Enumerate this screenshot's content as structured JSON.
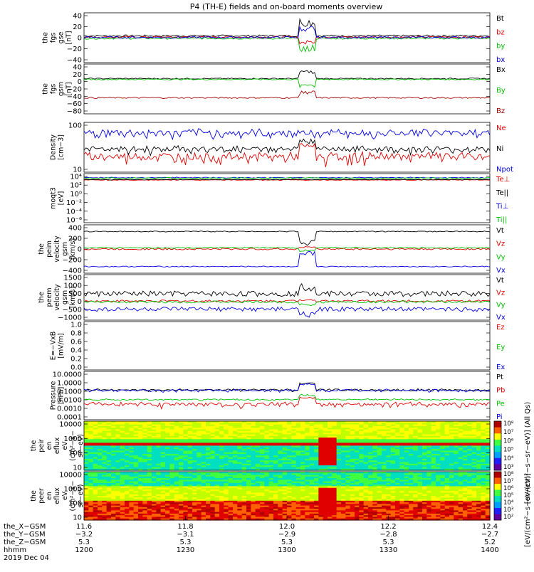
{
  "title": "P4 (TH-E) fields and on-board moments overview",
  "colors": {
    "black": "#000000",
    "red": "#e00000",
    "green": "#00c000",
    "blue": "#0000e0",
    "darkred": "#a00000"
  },
  "chart_data": [
    {
      "type": "line",
      "id": "fgs-gse",
      "ylabel": [
        "the",
        "fgs",
        "gse",
        "[nT]"
      ],
      "ylim": [
        -40,
        40
      ],
      "ytick_labels": [
        "40",
        "20",
        "0",
        "−20",
        "−40"
      ],
      "legend": [
        "Bt",
        "bz",
        "by",
        "bx"
      ],
      "legend_colors": [
        "black",
        "red",
        "green",
        "blue"
      ],
      "series": [
        {
          "name": "Bt",
          "color": "black",
          "base": 3,
          "amp": 1.5,
          "spike": 28
        },
        {
          "name": "bz",
          "color": "red",
          "base": 1,
          "amp": 1.5,
          "spike": -12
        },
        {
          "name": "by",
          "color": "green",
          "base": -1,
          "amp": 1.5,
          "spike": -22
        },
        {
          "name": "bx",
          "color": "blue",
          "base": 0.5,
          "amp": 1.5,
          "spike": 18
        }
      ]
    },
    {
      "type": "line",
      "id": "fgs-gsm",
      "ylabel": [
        "the",
        "fgs",
        "gsm",
        "[nT]"
      ],
      "ylim": [
        -90,
        40
      ],
      "ytick_labels": [
        "40",
        "20",
        "0",
        "−20",
        "−40",
        "−60",
        "−80"
      ],
      "legend": [
        "Bx",
        "By",
        "Bz"
      ],
      "legend_colors": [
        "black",
        "green",
        "darkred"
      ],
      "series": [
        {
          "name": "Bx",
          "color": "black",
          "base": 2,
          "amp": 1.5,
          "spike": 22
        },
        {
          "name": "By",
          "color": "green",
          "base": 0,
          "amp": 1.5,
          "spike": -20
        },
        {
          "name": "Bz",
          "color": "darkred",
          "base": -48,
          "amp": 2,
          "spike": 18
        }
      ]
    },
    {
      "type": "line",
      "id": "density",
      "ylabel": [
        "Density",
        "[cm−3]"
      ],
      "ylog": true,
      "ylim": [
        1,
        300
      ],
      "ytick_labels": [
        "100",
        "10"
      ],
      "legend": [
        "Ne",
        "Ni",
        "Npot"
      ],
      "legend_colors": [
        "red",
        "black",
        "blue"
      ],
      "series": [
        {
          "name": "Ne",
          "color": "red",
          "base": 6,
          "amp": 3,
          "spike": 20
        },
        {
          "name": "Ni",
          "color": "black",
          "base": 14,
          "amp": 5,
          "spike": 30
        },
        {
          "name": "Npot",
          "color": "blue",
          "base": 90,
          "amp": 40,
          "spike": 0
        }
      ]
    },
    {
      "type": "line",
      "id": "temperature",
      "ylabel": [
        "moqt3",
        "[eV]"
      ],
      "ylog": true,
      "ylim": [
        1e-06,
        10000
      ],
      "ytick_labels": [
        "10⁴",
        "10²",
        "10⁰",
        "10⁻²",
        "10⁻⁴",
        "10⁻⁶"
      ],
      "legend": [
        "Te⊥",
        "Te||",
        "Ti⊥",
        "Ti||"
      ],
      "legend_colors": [
        "red",
        "black",
        "blue",
        "green"
      ],
      "series": [
        {
          "name": "Te⊥",
          "color": "red",
          "base": 500,
          "amp": 80,
          "spike": 0
        },
        {
          "name": "Te||",
          "color": "black",
          "base": 600,
          "amp": 80,
          "spike": 0
        },
        {
          "name": "Ti⊥",
          "color": "blue",
          "base": 1500,
          "amp": 300,
          "spike": 0
        },
        {
          "name": "Ti||",
          "color": "green",
          "base": 1200,
          "amp": 300,
          "spike": 0
        }
      ]
    },
    {
      "type": "line",
      "id": "peim-velocity",
      "ylabel": [
        "the",
        "peim",
        "velocity",
        "gsm",
        "[km/s]"
      ],
      "ylim": [
        -400,
        400
      ],
      "ytick_labels": [
        "400",
        "200",
        "0",
        "−200",
        "−400"
      ],
      "legend": [
        "Vt",
        "Vz",
        "Vy",
        "Vx"
      ],
      "legend_colors": [
        "black",
        "red",
        "green",
        "blue"
      ],
      "series": [
        {
          "name": "Vt",
          "color": "black",
          "base": 290,
          "amp": 8,
          "spike": -250
        },
        {
          "name": "Vz",
          "color": "red",
          "base": 0,
          "amp": 15,
          "spike": 40
        },
        {
          "name": "Vy",
          "color": "green",
          "base": 20,
          "amp": 10,
          "spike": -60
        },
        {
          "name": "Vx",
          "color": "blue",
          "base": -290,
          "amp": 8,
          "spike": 250
        }
      ]
    },
    {
      "type": "line",
      "id": "peem-velocity",
      "ylabel": [
        "the",
        "peem",
        "velocity",
        "gsm",
        "[km/s]"
      ],
      "ylim": [
        -1000,
        1500
      ],
      "ytick_labels": [
        "1500",
        "1000",
        "500",
        "0",
        "−500",
        "−1000"
      ],
      "legend": [
        "Vt",
        "Vz",
        "Vy",
        "Vx"
      ],
      "legend_colors": [
        "black",
        "red",
        "green",
        "blue"
      ],
      "series": [
        {
          "name": "Vt",
          "color": "black",
          "base": 450,
          "amp": 150,
          "spike": 500
        },
        {
          "name": "Vz",
          "color": "red",
          "base": 50,
          "amp": 60,
          "spike": 100
        },
        {
          "name": "Vy",
          "color": "green",
          "base": 0,
          "amp": 60,
          "spike": -200
        },
        {
          "name": "Vx",
          "color": "blue",
          "base": -400,
          "amp": 120,
          "spike": -400
        }
      ]
    },
    {
      "type": "line",
      "id": "efield",
      "ylabel": [
        "E=−VxB",
        "[mV/m]"
      ],
      "ylim": [
        0,
        1
      ],
      "ytick_labels": [
        "1.0",
        "0.8",
        "0.6",
        "0.4",
        "0.2",
        "0.0"
      ],
      "legend": [
        "Ez",
        "Ey",
        "Ex"
      ],
      "legend_colors": [
        "red",
        "green",
        "blue"
      ],
      "series": []
    },
    {
      "type": "line",
      "id": "pressure",
      "ylabel": [
        "Pressure",
        "[nPa]"
      ],
      "ylog": true,
      "ylim": [
        0.0001,
        10
      ],
      "ytick_labels": [
        "10.0000",
        "1.0000",
        "0.1000",
        "0.0100",
        "0.0010",
        "0.0001"
      ],
      "legend": [
        "Pt",
        "Pb",
        "Pe",
        "Pi"
      ],
      "legend_colors": [
        "black",
        "red",
        "green",
        "blue"
      ],
      "series": [
        {
          "name": "Pt",
          "color": "black",
          "base": 0.12,
          "amp": 0.03,
          "spike": 0.6
        },
        {
          "name": "Pb",
          "color": "red",
          "base": 0.004,
          "amp": 0.002,
          "spike": 0.02
        },
        {
          "name": "Pe",
          "color": "green",
          "base": 0.012,
          "amp": 0.002,
          "spike": 0.03
        },
        {
          "name": "Pi",
          "color": "blue",
          "base": 0.11,
          "amp": 0.03,
          "spike": 0.5
        }
      ]
    },
    {
      "type": "heatmap",
      "id": "peir-eflux",
      "ylabel": [
        "the",
        "peir",
        "en",
        "eflux",
        "eV",
        "(cm²−s−",
        "sr−eV)"
      ],
      "ylog": true,
      "ylim": [
        5,
        25000
      ],
      "ytick_labels": [
        "10000",
        "1000",
        "100",
        "10"
      ],
      "colorbar_labels": [
        "10⁸",
        "10⁷",
        "10⁶",
        "10⁵",
        "10⁴",
        "10³"
      ],
      "colorbar_title": "[eV/(cm²−s−sr−eV)] (All Qs)"
    },
    {
      "type": "heatmap",
      "id": "peer-eflux",
      "ylabel": [
        "the",
        "peer",
        "en",
        "eflux",
        "eV",
        "(cm²−s−",
        "sr−eV)"
      ],
      "ylog": true,
      "ylim": [
        5,
        25000
      ],
      "ytick_labels": [
        "10000",
        "1000",
        "100",
        "10"
      ],
      "colorbar_labels": [
        "10⁸",
        "10⁷",
        "10⁶",
        "10⁵",
        "10⁴",
        "10³",
        "10²"
      ],
      "colorbar_title": "[eV/(cm²−s−sr−eV)]"
    }
  ],
  "x_axis": {
    "row_labels": [
      "the_X−GSM",
      "the_Y−GSM",
      "the_Z−GSM",
      "hhmm",
      "2019 Dec 04"
    ],
    "columns": [
      {
        "x": "11.6",
        "y": "−3.2",
        "z": "5.3",
        "hhmm": "1200"
      },
      {
        "x": "11.8",
        "y": "−3.1",
        "z": "5.3",
        "hhmm": "1230"
      },
      {
        "x": "12.0",
        "y": "−2.9",
        "z": "5.3",
        "hhmm": "1300"
      },
      {
        "x": "12.2",
        "y": "−2.8",
        "z": "5.3",
        "hhmm": "1330"
      },
      {
        "x": "12.4",
        "y": "−2.7",
        "z": "5.2",
        "hhmm": "1400"
      }
    ]
  }
}
